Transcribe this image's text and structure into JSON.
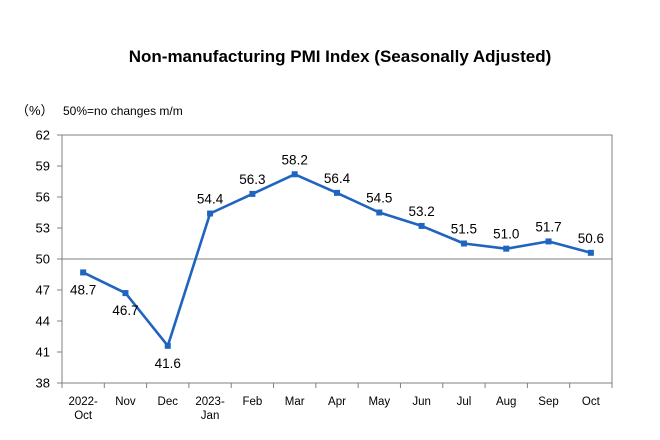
{
  "chart_data": {
    "type": "line",
    "title": "Non-manufacturing PMI Index (Seasonally Adjusted)",
    "unit_label": "（%）",
    "note": "50%=no changes m/m",
    "categories": [
      [
        "2022-",
        "Oct"
      ],
      [
        "Nov"
      ],
      [
        "Dec"
      ],
      [
        "2023-",
        "Jan"
      ],
      [
        "Feb"
      ],
      [
        "Mar"
      ],
      [
        "Apr"
      ],
      [
        "May"
      ],
      [
        "Jun"
      ],
      [
        "Jul"
      ],
      [
        "Aug"
      ],
      [
        "Sep"
      ],
      [
        "Oct"
      ]
    ],
    "values": [
      48.7,
      46.7,
      41.6,
      54.4,
      56.3,
      58.2,
      56.4,
      54.5,
      53.2,
      51.5,
      51.0,
      51.7,
      50.6
    ],
    "data_labels": [
      "48.7",
      "46.7",
      "41.6",
      "54.4",
      "56.3",
      "58.2",
      "56.4",
      "54.5",
      "53.2",
      "51.5",
      "51.0",
      "51.7",
      "50.6"
    ],
    "yticks": [
      38,
      41,
      44,
      47,
      50,
      53,
      56,
      59,
      62
    ],
    "ylim": [
      38,
      62
    ],
    "reference_line": 50,
    "grid": false,
    "legend": "none",
    "colors": {
      "line": "#1f64be",
      "axis": "#808080",
      "reference": "#808080"
    }
  }
}
